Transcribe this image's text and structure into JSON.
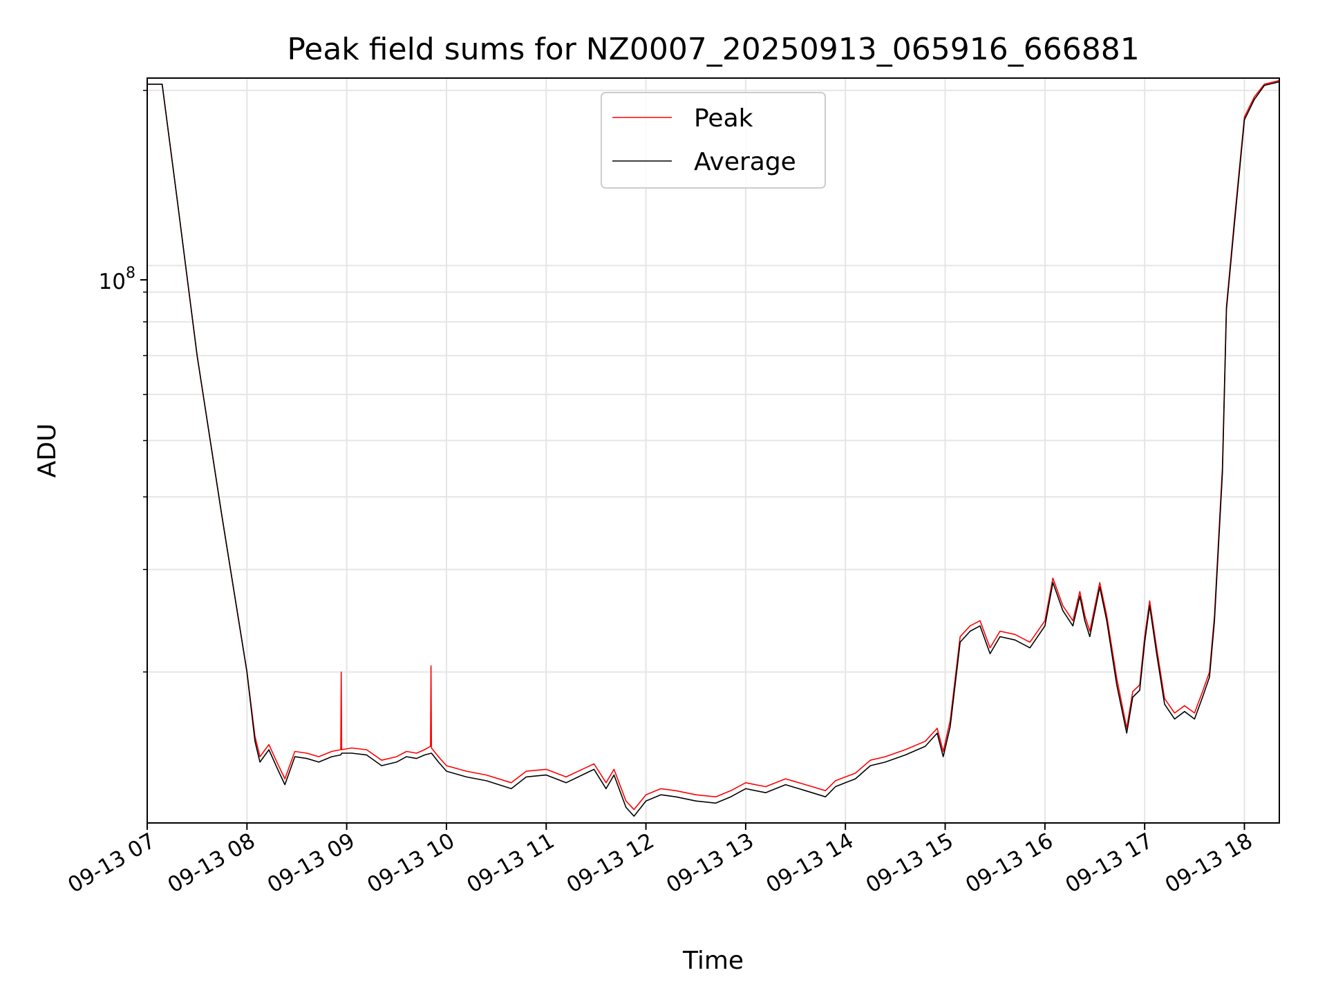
{
  "chart_data": {
    "type": "line",
    "title": "Peak field sums for NZ0007_20250913_065916_666881",
    "xlabel": "Time",
    "ylabel": "ADU",
    "x_ticks": [
      "09-13 07",
      "09-13 08",
      "09-13 09",
      "09-13 10",
      "09-13 11",
      "09-13 12",
      "09-13 13",
      "09-13 14",
      "09-13 15",
      "09-13 16",
      "09-13 17",
      "09-13 18"
    ],
    "y_tick_base": "10",
    "y_tick_exponent": "8",
    "y_scale": "log",
    "ylim": [
      11000000,
      210000000
    ],
    "xlim_hours": [
      7.0,
      18.35
    ],
    "grid": true,
    "legend_position": "upper center",
    "series": [
      {
        "name": "Peak",
        "color": "#ff0000",
        "x_hours": [
          7.0,
          7.15,
          7.3,
          7.5,
          7.75,
          8.0,
          8.08,
          8.13,
          8.22,
          8.3,
          8.38,
          8.48,
          8.6,
          8.72,
          8.85,
          8.94,
          8.945,
          8.95,
          9.05,
          9.2,
          9.35,
          9.5,
          9.6,
          9.7,
          9.78,
          9.84,
          9.845,
          9.85,
          9.92,
          10.0,
          10.2,
          10.4,
          10.65,
          10.8,
          11.0,
          11.2,
          11.4,
          11.48,
          11.6,
          11.68,
          11.8,
          11.88,
          12.0,
          12.15,
          12.3,
          12.5,
          12.7,
          12.85,
          13.0,
          13.2,
          13.4,
          13.6,
          13.8,
          13.9,
          14.0,
          14.1,
          14.25,
          14.4,
          14.6,
          14.8,
          14.92,
          14.98,
          15.05,
          15.15,
          15.25,
          15.35,
          15.45,
          15.55,
          15.7,
          15.85,
          16.0,
          16.08,
          16.18,
          16.28,
          16.35,
          16.4,
          16.45,
          16.55,
          16.62,
          16.72,
          16.82,
          16.88,
          16.95,
          17.0,
          17.05,
          17.12,
          17.2,
          17.3,
          17.4,
          17.5,
          17.58,
          17.65,
          17.7,
          17.78,
          17.82,
          17.9,
          18.0,
          18.1,
          18.2,
          18.35
        ],
        "y": [
          205000000,
          205000000,
          130000000,
          70000000,
          37000000,
          20000000,
          15500000,
          14300000,
          15000000,
          14000000,
          13100000,
          14600000,
          14500000,
          14300000,
          14600000,
          14700000,
          20000000,
          14700000,
          14800000,
          14700000,
          14100000,
          14300000,
          14600000,
          14500000,
          14700000,
          14900000,
          20500000,
          14800000,
          14300000,
          13800000,
          13500000,
          13300000,
          12900000,
          13500000,
          13600000,
          13200000,
          13700000,
          13900000,
          12900000,
          13600000,
          12000000,
          11600000,
          12300000,
          12600000,
          12500000,
          12300000,
          12200000,
          12500000,
          12900000,
          12700000,
          13100000,
          12800000,
          12500000,
          13000000,
          13200000,
          13400000,
          14100000,
          14300000,
          14700000,
          15200000,
          16000000,
          14600000,
          16500000,
          23000000,
          24000000,
          24500000,
          22000000,
          23500000,
          23200000,
          22500000,
          24500000,
          29000000,
          26000000,
          24500000,
          27500000,
          25000000,
          23500000,
          28500000,
          25000000,
          19500000,
          16000000,
          18500000,
          19000000,
          23000000,
          26500000,
          22000000,
          18000000,
          17000000,
          17500000,
          17000000,
          18500000,
          20000000,
          25000000,
          45000000,
          85000000,
          120000000,
          180000000,
          195000000,
          205000000,
          208000000
        ]
      },
      {
        "name": "Average",
        "color": "#000000",
        "x_hours": [
          7.0,
          7.15,
          7.3,
          7.5,
          7.75,
          8.0,
          8.08,
          8.13,
          8.22,
          8.3,
          8.38,
          8.48,
          8.6,
          8.72,
          8.85,
          8.94,
          8.95,
          9.05,
          9.2,
          9.35,
          9.5,
          9.6,
          9.7,
          9.78,
          9.85,
          9.92,
          10.0,
          10.2,
          10.4,
          10.65,
          10.8,
          11.0,
          11.2,
          11.4,
          11.48,
          11.6,
          11.68,
          11.8,
          11.88,
          12.0,
          12.15,
          12.3,
          12.5,
          12.7,
          12.85,
          13.0,
          13.2,
          13.4,
          13.6,
          13.8,
          13.9,
          14.0,
          14.1,
          14.25,
          14.4,
          14.6,
          14.8,
          14.92,
          14.98,
          15.05,
          15.15,
          15.25,
          15.35,
          15.45,
          15.55,
          15.7,
          15.85,
          16.0,
          16.08,
          16.18,
          16.28,
          16.35,
          16.4,
          16.45,
          16.55,
          16.62,
          16.72,
          16.82,
          16.88,
          16.95,
          17.0,
          17.05,
          17.12,
          17.2,
          17.3,
          17.4,
          17.5,
          17.58,
          17.65,
          17.7,
          17.78,
          17.82,
          17.9,
          18.0,
          18.1,
          18.2,
          18.35
        ],
        "y": [
          205000000,
          205000000,
          130000000,
          70000000,
          37000000,
          20000000,
          15200000,
          14000000,
          14700000,
          13700000,
          12800000,
          14300000,
          14200000,
          14000000,
          14300000,
          14400000,
          14500000,
          14500000,
          14400000,
          13800000,
          14000000,
          14300000,
          14200000,
          14400000,
          14500000,
          14000000,
          13500000,
          13200000,
          13000000,
          12600000,
          13200000,
          13300000,
          12900000,
          13400000,
          13600000,
          12600000,
          13300000,
          11700000,
          11300000,
          12000000,
          12300000,
          12200000,
          12000000,
          11900000,
          12200000,
          12600000,
          12400000,
          12800000,
          12500000,
          12200000,
          12700000,
          12900000,
          13100000,
          13800000,
          14000000,
          14400000,
          14900000,
          15700000,
          14300000,
          16100000,
          22500000,
          23500000,
          24000000,
          21500000,
          23000000,
          22700000,
          22000000,
          24000000,
          28500000,
          25500000,
          24000000,
          27000000,
          24500000,
          23000000,
          28000000,
          24500000,
          19000000,
          15700000,
          18100000,
          18600000,
          22500000,
          26000000,
          21500000,
          17600000,
          16600000,
          17100000,
          16600000,
          18100000,
          19600000,
          24500000,
          44000000,
          84000000,
          118000000,
          178000000,
          193000000,
          204000000,
          207000000
        ]
      }
    ]
  }
}
